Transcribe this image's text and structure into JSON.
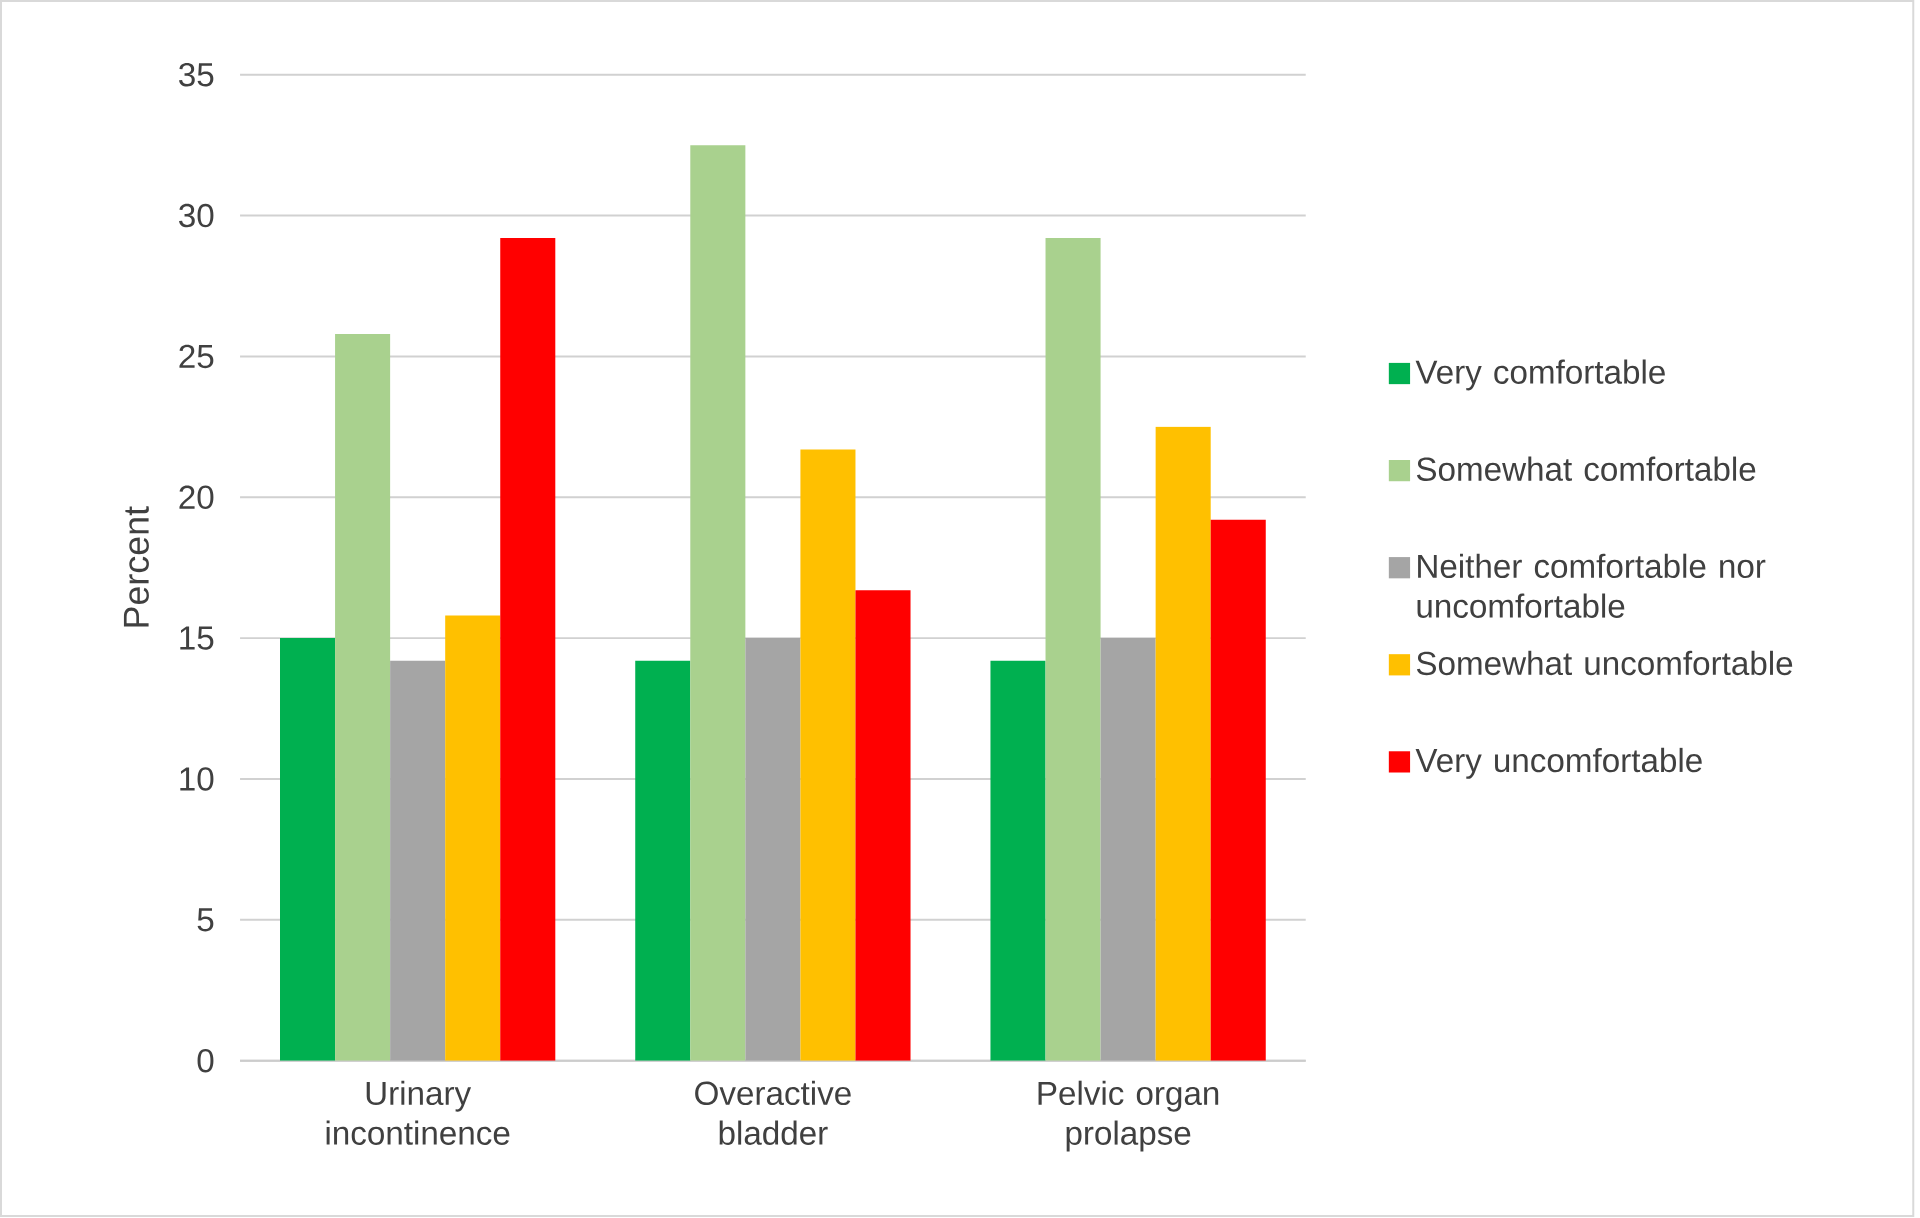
{
  "chart_data": {
    "type": "bar",
    "ylabel": "Percent",
    "categories": [
      "Urinary incontinence",
      "Overactive bladder",
      "Pelvic organ prolapse"
    ],
    "series": [
      {
        "name": "Very comfortable",
        "color": "#00b050",
        "values": [
          15,
          14.2,
          14.2
        ]
      },
      {
        "name": "Somewhat comfortable",
        "color": "#a9d18e",
        "values": [
          25.8,
          32.5,
          29.2
        ]
      },
      {
        "name": "Neither comfortable nor uncomfortable",
        "color": "#a5a5a5",
        "values": [
          14.2,
          15,
          15
        ]
      },
      {
        "name": "Somewhat uncomfortable",
        "color": "#ffc000",
        "values": [
          15.8,
          21.7,
          22.5
        ]
      },
      {
        "name": "Very uncomfortable",
        "color": "#ff0000",
        "values": [
          29.2,
          16.7,
          19.2
        ]
      }
    ],
    "ylim": [
      0,
      35
    ],
    "yticks": [
      0,
      5,
      10,
      15,
      20,
      25,
      30,
      35
    ],
    "grid": "y",
    "legend": "right"
  }
}
